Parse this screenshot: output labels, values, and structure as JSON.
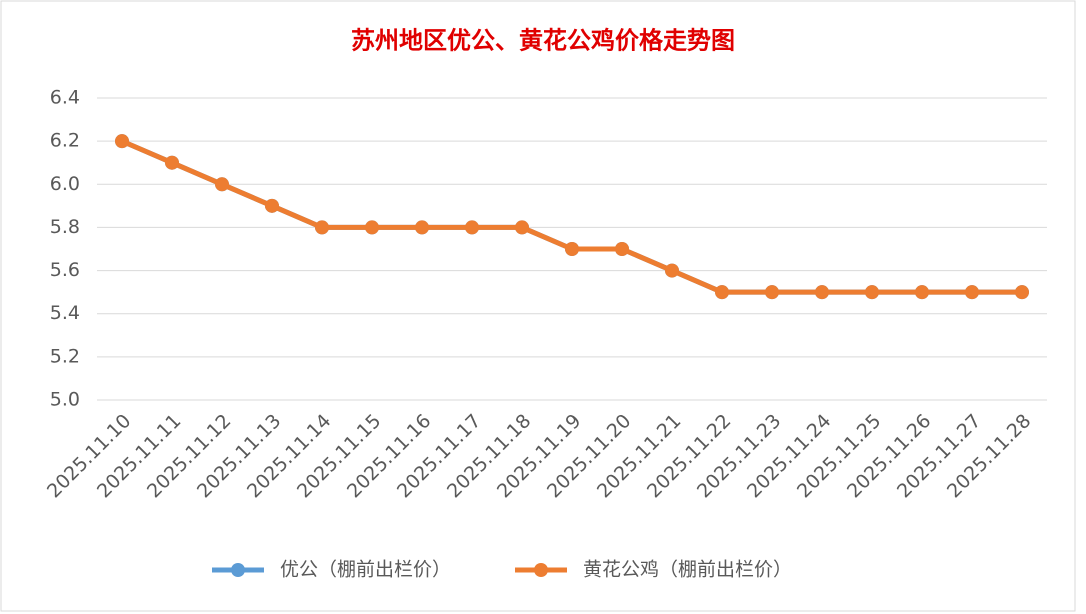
{
  "chart_data": {
    "type": "line",
    "title": "苏州地区优公、黄花公鸡价格走势图",
    "categories": [
      "2025.11.10",
      "2025.11.11",
      "2025.11.12",
      "2025.11.13",
      "2025.11.14",
      "2025.11.15",
      "2025.11.16",
      "2025.11.17",
      "2025.11.18",
      "2025.11.19",
      "2025.11.20",
      "2025.11.21",
      "2025.11.22",
      "2025.11.23",
      "2025.11.24",
      "2025.11.25",
      "2025.11.26",
      "2025.11.27",
      "2025.11.28"
    ],
    "series": [
      {
        "name": "优公（棚前出栏价）",
        "color": "#5b9bd5",
        "values": [
          6.2,
          6.1,
          6.0,
          5.9,
          5.8,
          5.8,
          5.8,
          5.8,
          5.8,
          5.7,
          5.7,
          5.6,
          5.5,
          5.5,
          5.5,
          5.5,
          5.5,
          5.5,
          5.5
        ]
      },
      {
        "name": "黄花公鸡（棚前出栏价）",
        "color": "#ed7d31",
        "values": [
          6.2,
          6.1,
          6.0,
          5.9,
          5.8,
          5.8,
          5.8,
          5.8,
          5.8,
          5.7,
          5.7,
          5.6,
          5.5,
          5.5,
          5.5,
          5.5,
          5.5,
          5.5,
          5.5
        ]
      }
    ],
    "ylim": [
      5.0,
      6.4
    ],
    "yticks": [
      {
        "value": 5.0,
        "label": "5.0"
      },
      5.2,
      5.4,
      5.6,
      5.8,
      {
        "value": 6.0,
        "label": "6.0"
      },
      6.2,
      6.4
    ],
    "grid": true,
    "legend": "bottom"
  }
}
